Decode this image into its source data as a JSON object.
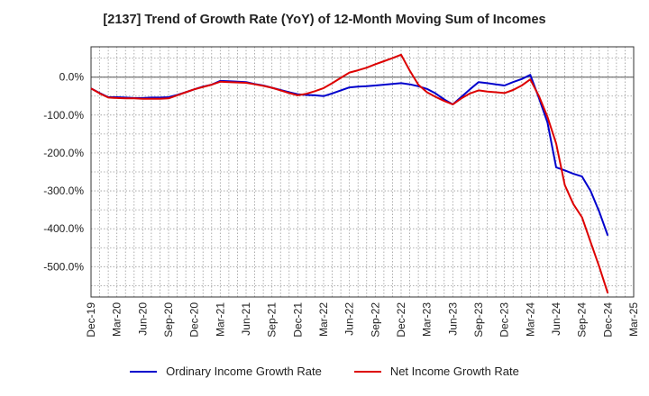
{
  "chart_data": {
    "type": "line",
    "title": "[2137]  Trend of Growth Rate (YoY) of 12-Month Moving Sum of Incomes",
    "xlabel": "",
    "ylabel": "",
    "x_ticks": [
      "Dec-19",
      "Mar-20",
      "Jun-20",
      "Sep-20",
      "Dec-20",
      "Mar-21",
      "Jun-21",
      "Sep-21",
      "Dec-21",
      "Mar-22",
      "Jun-22",
      "Sep-22",
      "Dec-22",
      "Mar-23",
      "Jun-23",
      "Sep-23",
      "Dec-23",
      "Mar-24",
      "Jun-24",
      "Sep-24",
      "Dec-24",
      "Mar-25"
    ],
    "y_ticks": [
      0,
      -100,
      -200,
      -300,
      -400,
      -500
    ],
    "y_tick_labels": [
      "0.0%",
      "-100.0%",
      "-200.0%",
      "-300.0%",
      "-400.0%",
      "-500.0%"
    ],
    "ylim": [
      -580,
      80
    ],
    "grid": true,
    "legend_position": "bottom",
    "x": [
      "Dec-19",
      "Jan-20",
      "Feb-20",
      "Mar-20",
      "Apr-20",
      "May-20",
      "Jun-20",
      "Jul-20",
      "Aug-20",
      "Sep-20",
      "Oct-20",
      "Nov-20",
      "Dec-20",
      "Jan-21",
      "Feb-21",
      "Mar-21",
      "Apr-21",
      "May-21",
      "Jun-21",
      "Jul-21",
      "Aug-21",
      "Sep-21",
      "Oct-21",
      "Nov-21",
      "Dec-21",
      "Jan-22",
      "Feb-22",
      "Mar-22",
      "Apr-22",
      "May-22",
      "Jun-22",
      "Jul-22",
      "Aug-22",
      "Sep-22",
      "Oct-22",
      "Nov-22",
      "Dec-22",
      "Jan-23",
      "Feb-23",
      "Mar-23",
      "Apr-23",
      "May-23",
      "Jun-23",
      "Jul-23",
      "Aug-23",
      "Sep-23",
      "Oct-23",
      "Nov-23",
      "Dec-23",
      "Jan-24",
      "Feb-24",
      "Mar-24",
      "Apr-24",
      "May-24",
      "Jun-24",
      "Jul-24",
      "Aug-24",
      "Sep-24",
      "Oct-24",
      "Nov-24",
      "Dec-24"
    ],
    "series": [
      {
        "name": "Ordinary Income Growth Rate",
        "color": "#0000cc",
        "values": [
          -30,
          -42,
          -53,
          -53,
          -54,
          -55,
          -55,
          -54,
          -54,
          -53,
          -47,
          -40,
          -32,
          -25,
          -20,
          -10,
          -11,
          -12,
          -13,
          -18,
          -22,
          -28,
          -34,
          -40,
          -45,
          -47,
          -48,
          -50,
          -43,
          -35,
          -27,
          -25,
          -24,
          -22,
          -20,
          -18,
          -16,
          -19,
          -24,
          -31,
          -43,
          -59,
          -72,
          -52,
          -32,
          -13,
          -16,
          -19,
          -22,
          -13,
          -5,
          6,
          -55,
          -120,
          -238,
          -246,
          -255,
          -262,
          -300,
          -355,
          -418
        ]
      },
      {
        "name": "Net Income Growth Rate",
        "color": "#dd0000",
        "values": [
          -30,
          -43,
          -54,
          -55,
          -56,
          -56,
          -57,
          -57,
          -57,
          -56,
          -48,
          -40,
          -32,
          -26,
          -20,
          -12,
          -13,
          -14,
          -15,
          -19,
          -23,
          -28,
          -35,
          -42,
          -48,
          -44,
          -37,
          -29,
          -16,
          -2,
          12,
          18,
          25,
          34,
          42,
          50,
          59,
          17,
          -20,
          -40,
          -52,
          -63,
          -72,
          -56,
          -43,
          -35,
          -38,
          -40,
          -42,
          -34,
          -22,
          -6,
          -50,
          -105,
          -175,
          -285,
          -335,
          -370,
          -435,
          -500,
          -570
        ]
      }
    ]
  }
}
